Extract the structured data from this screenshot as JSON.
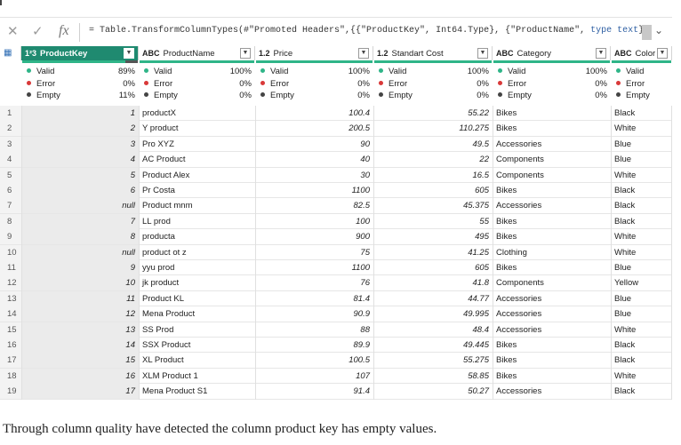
{
  "formula_bar": {
    "cancel_icon": "x-icon",
    "confirm_icon": "check-icon",
    "fx_label": "fx",
    "formula_prefix": "= Table.TransformColumnTypes(#\"Promoted Headers\",{{\"ProductKey\", Int64.Type}, {\"ProductName\", ",
    "formula_kw1": "type",
    "formula_mid": " ",
    "formula_kw2": "text",
    "formula_suffix": "},"
  },
  "columns": [
    {
      "type_icon": "1²3",
      "name": "ProductKey",
      "selected": true,
      "valid": "89%",
      "error": "0%",
      "empty": "11%"
    },
    {
      "type_icon": "ABC",
      "name": "ProductName",
      "selected": false,
      "valid": "100%",
      "error": "0%",
      "empty": "0%"
    },
    {
      "type_icon": "1.2",
      "name": "Price",
      "selected": false,
      "valid": "100%",
      "error": "0%",
      "empty": "0%"
    },
    {
      "type_icon": "1.2",
      "name": "Standart Cost",
      "selected": false,
      "valid": "100%",
      "error": "0%",
      "empty": "0%"
    },
    {
      "type_icon": "ABC",
      "name": "Category",
      "selected": false,
      "valid": "100%",
      "error": "0%",
      "empty": "0%"
    },
    {
      "type_icon": "ABC",
      "name": "Color",
      "selected": false,
      "valid": "",
      "error": "",
      "empty": ""
    }
  ],
  "quality_labels": {
    "valid": "Valid",
    "error": "Error",
    "empty": "Empty"
  },
  "rows": [
    {
      "n": "1",
      "key": "1",
      "name": "productX",
      "price": "100.4",
      "cost": "55.22",
      "category": "Bikes",
      "color": "Black"
    },
    {
      "n": "2",
      "key": "2",
      "name": "Y product",
      "price": "200.5",
      "cost": "110.275",
      "category": "Bikes",
      "color": "White"
    },
    {
      "n": "3",
      "key": "3",
      "name": "Pro XYZ",
      "price": "90",
      "cost": "49.5",
      "category": "Accessories",
      "color": "Blue"
    },
    {
      "n": "4",
      "key": "4",
      "name": "AC Product",
      "price": "40",
      "cost": "22",
      "category": "Components",
      "color": "Blue"
    },
    {
      "n": "5",
      "key": "5",
      "name": "Product Alex",
      "price": "30",
      "cost": "16.5",
      "category": "Components",
      "color": "White"
    },
    {
      "n": "6",
      "key": "6",
      "name": "Pr Costa",
      "price": "1100",
      "cost": "605",
      "category": "Bikes",
      "color": "Black"
    },
    {
      "n": "7",
      "key": "null",
      "name": "Product mnm",
      "price": "82.5",
      "cost": "45.375",
      "category": "Accessories",
      "color": "Black"
    },
    {
      "n": "8",
      "key": "7",
      "name": "LL prod",
      "price": "100",
      "cost": "55",
      "category": "Bikes",
      "color": "Black"
    },
    {
      "n": "9",
      "key": "8",
      "name": "producta",
      "price": "900",
      "cost": "495",
      "category": "Bikes",
      "color": "White"
    },
    {
      "n": "10",
      "key": "null",
      "name": "product ot z",
      "price": "75",
      "cost": "41.25",
      "category": "Clothing",
      "color": "White"
    },
    {
      "n": "11",
      "key": "9",
      "name": "yyu prod",
      "price": "1100",
      "cost": "605",
      "category": "Bikes",
      "color": "Blue"
    },
    {
      "n": "12",
      "key": "10",
      "name": "jk product",
      "price": "76",
      "cost": "41.8",
      "category": "Components",
      "color": "Yellow"
    },
    {
      "n": "13",
      "key": "11",
      "name": "Product KL",
      "price": "81.4",
      "cost": "44.77",
      "category": "Accessories",
      "color": "Blue"
    },
    {
      "n": "14",
      "key": "12",
      "name": "Mena Product",
      "price": "90.9",
      "cost": "49.995",
      "category": "Accessories",
      "color": "Blue"
    },
    {
      "n": "15",
      "key": "13",
      "name": "SS Prod",
      "price": "88",
      "cost": "48.4",
      "category": "Accessories",
      "color": "White"
    },
    {
      "n": "16",
      "key": "14",
      "name": "SSX Product",
      "price": "89.9",
      "cost": "49.445",
      "category": "Bikes",
      "color": "Black"
    },
    {
      "n": "17",
      "key": "15",
      "name": "XL Product",
      "price": "100.5",
      "cost": "55.275",
      "category": "Bikes",
      "color": "Black"
    },
    {
      "n": "18",
      "key": "16",
      "name": "XLM Product 1",
      "price": "107",
      "cost": "58.85",
      "category": "Bikes",
      "color": "White"
    },
    {
      "n": "19",
      "key": "17",
      "name": "Mena Product S1",
      "price": "91.4",
      "cost": "50.27",
      "category": "Accessories",
      "color": "Black"
    }
  ],
  "caption": "Through column quality have detected the column product key has empty values.",
  "colors": {
    "accent": "#1f8a70",
    "valid": "#2fb588",
    "error": "#d93939",
    "empty": "#444444"
  }
}
